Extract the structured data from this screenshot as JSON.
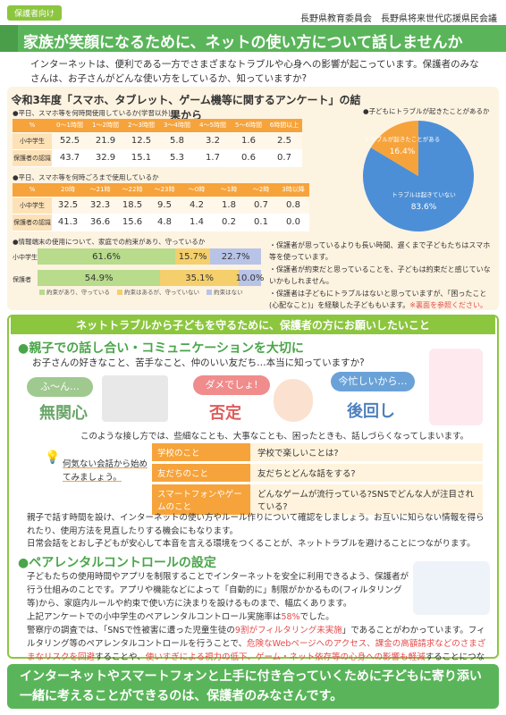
{
  "header": {
    "tag": "保護者向け",
    "orgs": "長野県教育委員会　長野県将来世代応援県民会議",
    "title": "家族が笑顔になるために、ネットの使い方について話しませんか",
    "intro": "インターネットは、便利である一方でさまざまなトラブルや心身への影響が起こっています。保護者のみなさんは、お子さんがどんな使い方をしているか、知っていますか?"
  },
  "survey": {
    "title": "令和3年度「スマホ、タブレット、ゲーム機等に関するアンケート」の結果から",
    "q1": "●平日、スマホ等を何時間使用しているか(学習以外)",
    "q1_headers": [
      "%",
      "0～1時間",
      "1～2時間",
      "2～3時間",
      "3～4時間",
      "4～5時間",
      "5～6時間",
      "6時間以上"
    ],
    "q1_rows": [
      {
        "label": "小中学生",
        "values": [
          "52.5",
          "21.9",
          "12.5",
          "5.8",
          "3.2",
          "1.6",
          "2.5"
        ]
      },
      {
        "label": "保護者の認識",
        "values": [
          "43.7",
          "32.9",
          "15.1",
          "5.3",
          "1.7",
          "0.6",
          "0.7"
        ]
      }
    ],
    "q2": "●平日、スマホ等を何時ごろまで使用しているか",
    "q2_headers": [
      "%",
      "20時",
      "～21時",
      "～22時",
      "～23時",
      "～0時",
      "～1時",
      "～2時",
      "3時以降"
    ],
    "q2_rows": [
      {
        "label": "小中学生",
        "values": [
          "32.5",
          "32.3",
          "18.5",
          "9.5",
          "4.2",
          "1.8",
          "0.7",
          "0.8"
        ]
      },
      {
        "label": "保護者の認識",
        "values": [
          "41.3",
          "36.6",
          "15.6",
          "4.8",
          "1.4",
          "0.2",
          "0.1",
          "0.0"
        ]
      }
    ],
    "q3": "●情報端末の使用について、家庭での約束があり、守っているか",
    "q3_rows": [
      {
        "label": "小中学生",
        "v1": "61.6%",
        "v2": "15.7%",
        "v3": "22.7%"
      },
      {
        "label": "保護者",
        "v1": "54.9%",
        "v2": "35.1%",
        "v3": "10.0%"
      }
    ],
    "legend": [
      "約束があり、守っている",
      "約束はあるが、守っていない",
      "約束はない"
    ],
    "pie_q": "●子どもにトラブルが起きたことがあるか",
    "pie_a_label": "トラブルが起きたことがある",
    "pie_a_value": "16.4%",
    "pie_b_label": "トラブルは起きていない",
    "pie_b_value": "83.6%",
    "notes": [
      "・保護者が思っているよりも長い時間、遅くまで子どもたちはスマホ等を使っています。",
      "・保護者が約束だと思っていることを、子どもは約束だと感じていないかもしれません。",
      "・保護者は子どもにトラブルはないと思っていますが、「困ったこと(心配なこと)」を経験した子どももいます。"
    ],
    "notes_link": "※裏面を参照ください。"
  },
  "chart_data": {
    "type": "pie",
    "title": "●子どもにトラブルが起きたことがあるか",
    "categories": [
      "トラブルが起きたことがある",
      "トラブルは起きていない"
    ],
    "values": [
      16.4,
      83.6
    ],
    "colors": [
      "#f6a33b",
      "#4d8fd6"
    ]
  },
  "section2": {
    "head": "ネットトラブルから子どもを守るために、保護者の方にお願いしたいこと",
    "h_talk": "●親子での話し合い・コミュニケーションを大切に",
    "sub_talk": "お子さんの好きなこと、苦手なこと、仲のいい友だち…本当に知っていますか?",
    "bubbles": [
      "ふ～ん…",
      "ダメでしょ!",
      "今忙しいから…"
    ],
    "bigs": [
      "無関心",
      "否定",
      "後回し"
    ],
    "line_block": "このような接し方では、些細なことも、大事なことも、困ったときも、話しづらくなってしまいます。",
    "tip": "何気ない会話から始めてみましょう。",
    "topics": [
      {
        "k": "学校のこと",
        "v": "学校で楽しいことは?"
      },
      {
        "k": "友だちのこと",
        "v": "友だちとどんな話をする?"
      },
      {
        "k": "スマートフォンやゲームのこと",
        "v": "どんなゲームが流行っている?SNSでどんな人が注目されている?"
      }
    ],
    "para1": "親子で話す時間を設け、インターネットの使い方やルール作りについて確認をしましょう。お互いに知らない情報を得られたり、使用方法を見直したりする機会にもなります。",
    "para2": "日常会話をとおし子どもが安心して本音を言える環境をつくることが、ネットトラブルを避けることにつながります。",
    "h_pc": "●ペアレンタルコントロールの設定",
    "pc1": "子どもたちの使用時間やアプリを制限することでインターネットを安全に利用できるよう、保護者が行う仕組みのことです。アプリや機能などによって「自動的に」制限がかかるもの(フィルタリング等)から、家庭内ルールや約束で使い方に決まりを設けるものまで、幅広くあります。",
    "pc2a": "上記アンケートでの小中学生のペアレンタルコントロール実施率は",
    "pc2b": "58%",
    "pc2c": "でした。",
    "pc3a": "警察庁の調査では、「SNSで性被害に遭った児童生徒の",
    "pc3b": "9割がフィルタリング未実施",
    "pc3c": "」であることがわかっています。フィルタリング等のペアレンタルコントロールを行うことで、",
    "pc3d": "危険なWebページへのアクセス、課金の高額請求などのさまざまなリスクを回避",
    "pc3e": "することや、",
    "pc3f": "使いすぎによる視力の低下、ゲーム・ネット依存等の心身への影響も軽減",
    "pc3g": "することにつながります。"
  },
  "footer": {
    "line1": "インターネットやスマートフォンと上手に付き合っていくために子どもに寄り添い",
    "line2": "一緒に考えることができるのは、保護者のみなさんです。"
  }
}
